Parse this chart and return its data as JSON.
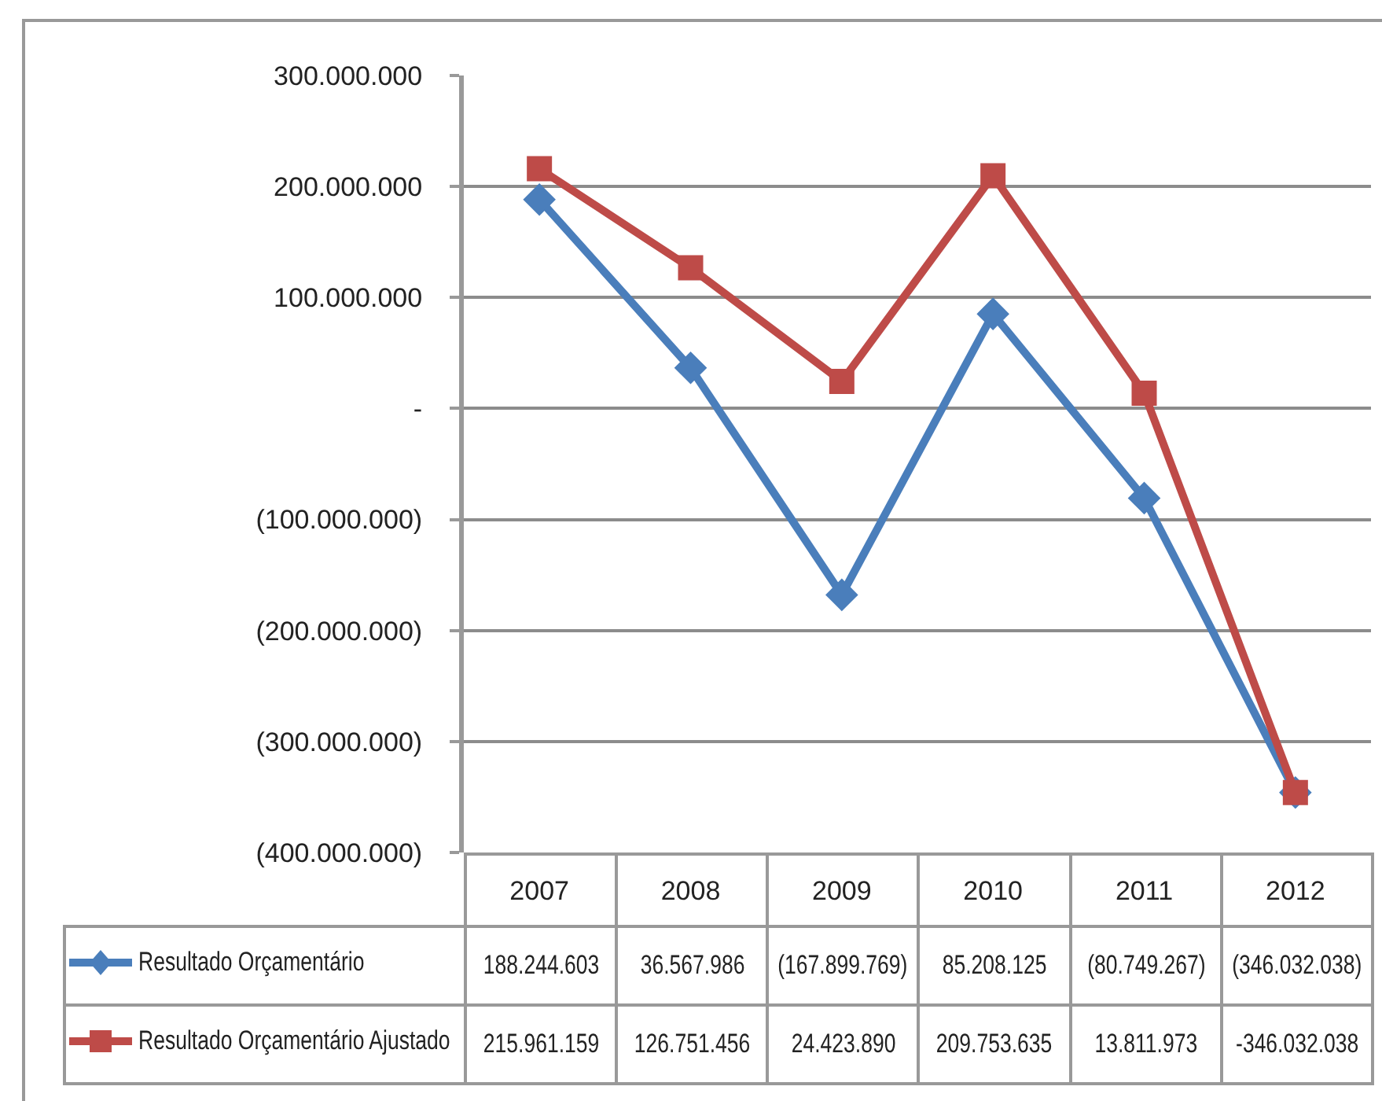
{
  "chart_data": {
    "type": "line",
    "categories": [
      "2007",
      "2008",
      "2009",
      "2010",
      "2011",
      "2012"
    ],
    "series": [
      {
        "name": "Resultado Orçamentário",
        "color": "#4a7ebb",
        "marker": "diamond",
        "values": [
          188244603,
          36567986,
          -167899769,
          85208125,
          -80749267,
          -346032038
        ],
        "value_labels": [
          "188.244.603",
          "36.567.986",
          "(167.899.769)",
          "85.208.125",
          "(80.749.267)",
          "(346.032.038)"
        ]
      },
      {
        "name": "Resultado Orçamentário Ajustado",
        "color": "#be4b48",
        "marker": "square",
        "values": [
          215961159,
          126751456,
          24423890,
          209753635,
          13811973,
          -346032038
        ],
        "value_labels": [
          "215.961.159",
          "126.751.456",
          "24.423.890",
          "209.753.635",
          "13.811.973",
          "-346.032.038"
        ]
      }
    ],
    "ylim": [
      -400000000,
      300000000
    ],
    "yticks": [
      {
        "value": -400000000,
        "label": "(400.000.000)"
      },
      {
        "value": -300000000,
        "label": "(300.000.000)"
      },
      {
        "value": -200000000,
        "label": "(200.000.000)"
      },
      {
        "value": -100000000,
        "label": "(100.000.000)"
      },
      {
        "value": 0,
        "label": "-"
      },
      {
        "value": 100000000,
        "label": "100.000.000"
      },
      {
        "value": 200000000,
        "label": "200.000.000"
      },
      {
        "value": 300000000,
        "label": "300.000.000"
      }
    ],
    "grid": "y",
    "legend": "bottom",
    "line_style": "solid"
  }
}
